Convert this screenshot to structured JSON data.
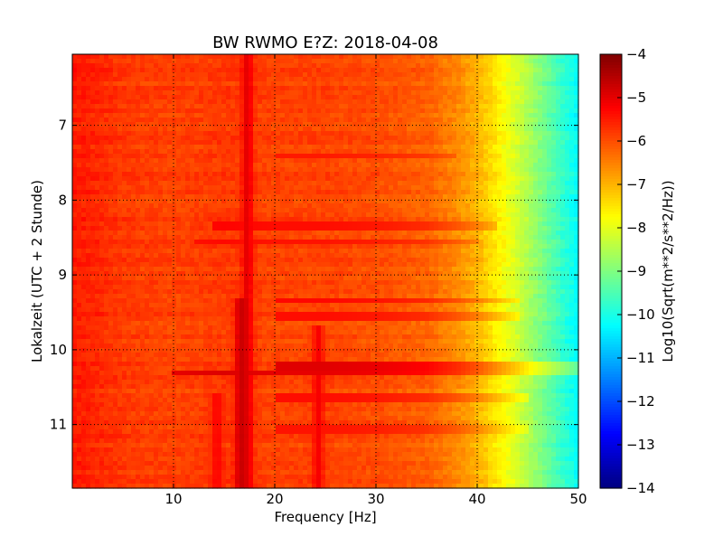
{
  "chart_data": {
    "type": "heatmap",
    "title": "BW RWMO E?Z: 2018-04-08",
    "xlabel": "Frequency [Hz]",
    "ylabel": "Lokalzeit (UTC + 2 Stunde)",
    "xlim": [
      0,
      50
    ],
    "ylim": [
      11.85,
      6.05
    ],
    "y_inverted": true,
    "x_ticks": [
      10,
      20,
      30,
      40,
      50
    ],
    "x_tick_labels": [
      "10",
      "20",
      "30",
      "40",
      "50"
    ],
    "y_ticks": [
      7,
      8,
      9,
      10,
      11
    ],
    "y_tick_labels": [
      "7",
      "8",
      "9",
      "10",
      "11"
    ],
    "grid": true,
    "colormap": "jet",
    "colorbar": {
      "label": "Log10(Sqrt(m**2/s**2/Hz))",
      "range": [
        -14,
        -4
      ],
      "ticks": [
        -4,
        -5,
        -6,
        -7,
        -8,
        -9,
        -10,
        -11,
        -12,
        -13,
        -14
      ],
      "tick_labels": [
        "−4",
        "−5",
        "−6",
        "−7",
        "−8",
        "−9",
        "−10",
        "−11",
        "−12",
        "−13",
        "−14"
      ]
    },
    "baseline_profile": {
      "frequency_hz": [
        0,
        2,
        5,
        10,
        15,
        20,
        25,
        30,
        35,
        38,
        40,
        42,
        44,
        46,
        48,
        50
      ],
      "value_log10": [
        -5.5,
        -5.6,
        -5.8,
        -5.9,
        -5.8,
        -5.9,
        -5.9,
        -6.0,
        -6.2,
        -6.6,
        -7.0,
        -7.6,
        -8.2,
        -8.9,
        -9.6,
        -10.3
      ]
    },
    "spectral_lines": [
      {
        "frequency_hz": 17.3,
        "from": 6.05,
        "to": 11.85,
        "value_log10": -4.9
      },
      {
        "frequency_hz": 16.6,
        "from": 9.3,
        "to": 11.85,
        "value_log10": -4.6
      },
      {
        "frequency_hz": 14.3,
        "from": 10.6,
        "to": 11.85,
        "value_log10": -5.2
      },
      {
        "frequency_hz": 24.3,
        "from": 9.7,
        "to": 11.85,
        "value_log10": -5.1
      }
    ],
    "time_bands": [
      {
        "time": 7.4,
        "from_hz": 20,
        "to_hz": 38,
        "value_log10": -5.4
      },
      {
        "time": 8.35,
        "from_hz": 14,
        "to_hz": 42,
        "value_log10": -5.2
      },
      {
        "time": 8.55,
        "from_hz": 12,
        "to_hz": 40,
        "value_log10": -5.3
      },
      {
        "time": 9.35,
        "from_hz": 20,
        "to_hz": 44,
        "value_log10": -5.1
      },
      {
        "time": 9.55,
        "from_hz": 20,
        "to_hz": 44,
        "value_log10": -5.2
      },
      {
        "time": 10.2,
        "from_hz": 20,
        "to_hz": 50,
        "value_log10": -4.5
      },
      {
        "time": 10.3,
        "from_hz": 10,
        "to_hz": 50,
        "value_log10": -4.6
      },
      {
        "time": 10.65,
        "from_hz": 20,
        "to_hz": 45,
        "value_log10": -5.2
      },
      {
        "time": 11.05,
        "from_hz": 20,
        "to_hz": 45,
        "value_log10": -5.3
      }
    ]
  }
}
